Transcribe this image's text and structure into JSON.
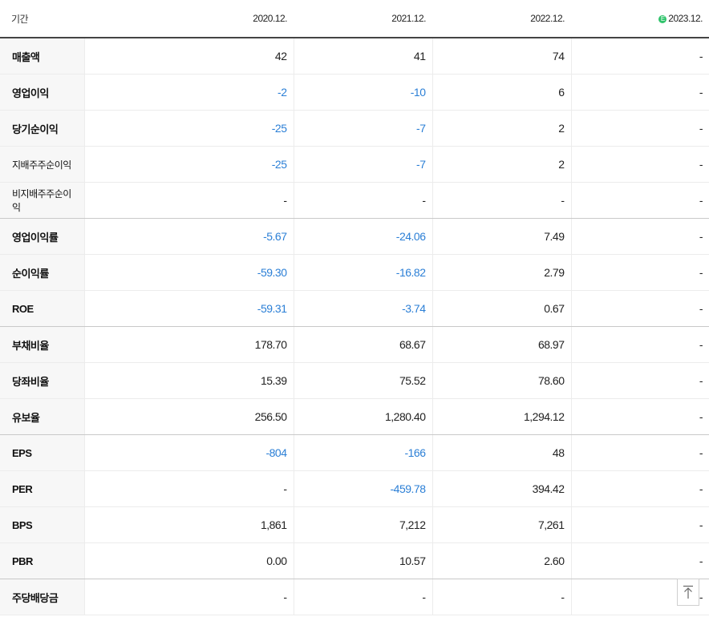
{
  "header": {
    "period_label": "기간",
    "columns": [
      "2020.12.",
      "2021.12.",
      "2022.12.",
      "2023.12."
    ],
    "estimate_badge": "E"
  },
  "colors": {
    "negative": "#2b7fd6",
    "estimate_badge": "#2fc36b"
  },
  "rows": [
    {
      "label": "매출액",
      "values": [
        "42",
        "41",
        "74",
        "-"
      ],
      "neg": [
        false,
        false,
        false,
        false
      ],
      "small": false,
      "group_end": false
    },
    {
      "label": "영업이익",
      "values": [
        "-2",
        "-10",
        "6",
        "-"
      ],
      "neg": [
        true,
        true,
        false,
        false
      ],
      "small": false,
      "group_end": false
    },
    {
      "label": "당기순이익",
      "values": [
        "-25",
        "-7",
        "2",
        "-"
      ],
      "neg": [
        true,
        true,
        false,
        false
      ],
      "small": false,
      "group_end": false
    },
    {
      "label": "지배주주순이익",
      "values": [
        "-25",
        "-7",
        "2",
        "-"
      ],
      "neg": [
        true,
        true,
        false,
        false
      ],
      "small": true,
      "group_end": false
    },
    {
      "label": "비지배주주순이익",
      "values": [
        "-",
        "-",
        "-",
        "-"
      ],
      "neg": [
        false,
        false,
        false,
        false
      ],
      "small": true,
      "group_end": true
    },
    {
      "label": "영업이익률",
      "values": [
        "-5.67",
        "-24.06",
        "7.49",
        "-"
      ],
      "neg": [
        true,
        true,
        false,
        false
      ],
      "small": false,
      "group_end": false
    },
    {
      "label": "순이익률",
      "values": [
        "-59.30",
        "-16.82",
        "2.79",
        "-"
      ],
      "neg": [
        true,
        true,
        false,
        false
      ],
      "small": false,
      "group_end": false
    },
    {
      "label": "ROE",
      "values": [
        "-59.31",
        "-3.74",
        "0.67",
        "-"
      ],
      "neg": [
        true,
        true,
        false,
        false
      ],
      "small": false,
      "group_end": true
    },
    {
      "label": "부채비율",
      "values": [
        "178.70",
        "68.67",
        "68.97",
        "-"
      ],
      "neg": [
        false,
        false,
        false,
        false
      ],
      "small": false,
      "group_end": false
    },
    {
      "label": "당좌비율",
      "values": [
        "15.39",
        "75.52",
        "78.60",
        "-"
      ],
      "neg": [
        false,
        false,
        false,
        false
      ],
      "small": false,
      "group_end": false
    },
    {
      "label": "유보율",
      "values": [
        "256.50",
        "1,280.40",
        "1,294.12",
        "-"
      ],
      "neg": [
        false,
        false,
        false,
        false
      ],
      "small": false,
      "group_end": true
    },
    {
      "label": "EPS",
      "values": [
        "-804",
        "-166",
        "48",
        "-"
      ],
      "neg": [
        true,
        true,
        false,
        false
      ],
      "small": false,
      "group_end": false
    },
    {
      "label": "PER",
      "values": [
        "-",
        "-459.78",
        "394.42",
        "-"
      ],
      "neg": [
        false,
        true,
        false,
        false
      ],
      "small": false,
      "group_end": false
    },
    {
      "label": "BPS",
      "values": [
        "1,861",
        "7,212",
        "7,261",
        "-"
      ],
      "neg": [
        false,
        false,
        false,
        false
      ],
      "small": false,
      "group_end": false
    },
    {
      "label": "PBR",
      "values": [
        "0.00",
        "10.57",
        "2.60",
        "-"
      ],
      "neg": [
        false,
        false,
        false,
        false
      ],
      "small": false,
      "group_end": true
    },
    {
      "label": "주당배당금",
      "values": [
        "-",
        "-",
        "-",
        "-"
      ],
      "neg": [
        false,
        false,
        false,
        false
      ],
      "small": false,
      "group_end": false
    }
  ],
  "scroll_top": {
    "icon": "arrow-up-to-top-icon"
  }
}
